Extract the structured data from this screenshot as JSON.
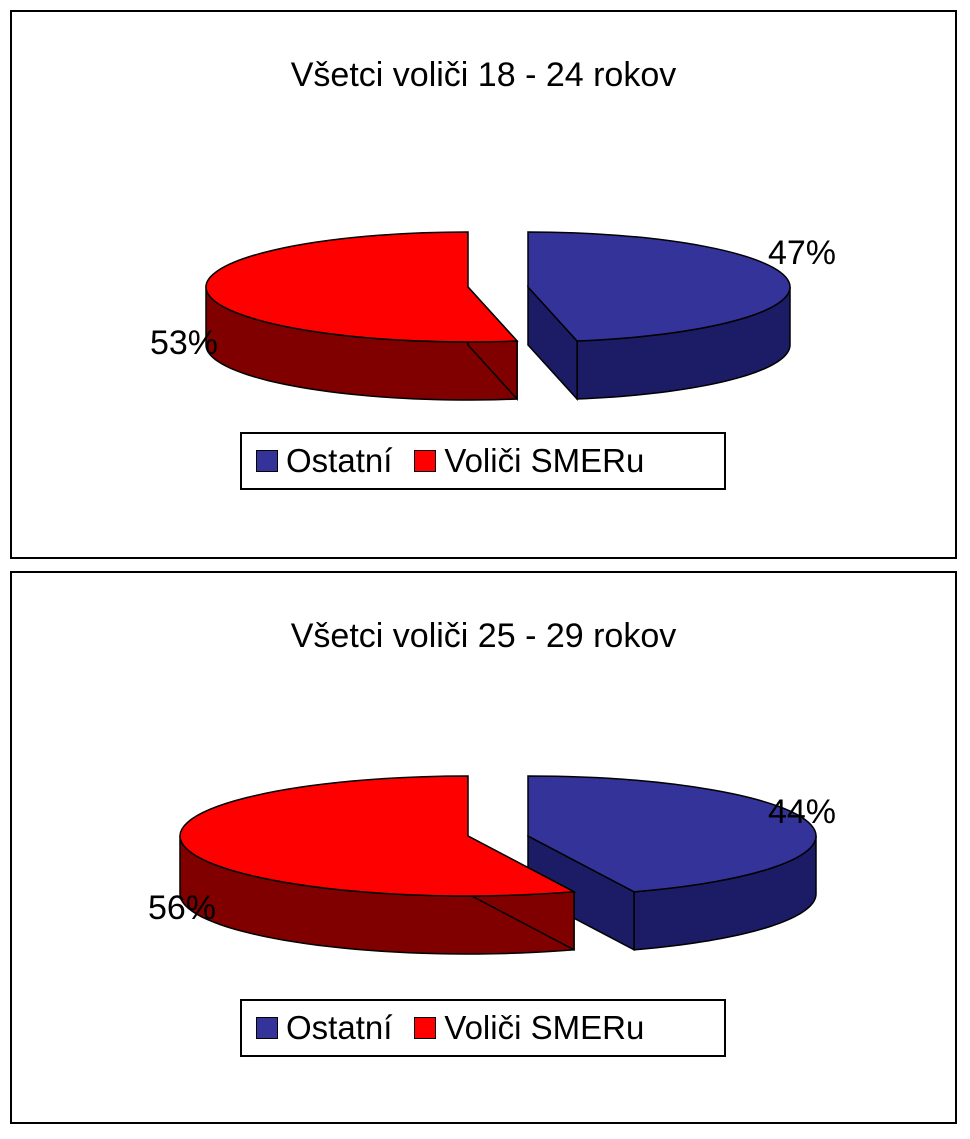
{
  "colors": {
    "ostatni_top": "#333399",
    "ostatni_side": "#1c1c66",
    "smer_top": "#ff0000",
    "smer_side": "#800000"
  },
  "legend": {
    "ostatni": "Ostatní",
    "smer": "Voliči SMERu"
  },
  "chart_data": [
    {
      "type": "pie",
      "title": "Všetci voliči 18 - 24 rokov",
      "labels": [
        "Ostatní",
        "Voliči SMERu"
      ],
      "values": [
        47,
        53
      ],
      "value_labels": [
        "47%",
        "53%"
      ],
      "style": "3d-exploded",
      "legend_position": "bottom"
    },
    {
      "type": "pie",
      "title": "Všetci voliči 25 - 29 rokov",
      "labels": [
        "Ostatní",
        "Voliči SMERu"
      ],
      "values": [
        44,
        56
      ],
      "value_labels": [
        "44%",
        "56%"
      ],
      "style": "3d-exploded",
      "legend_position": "bottom"
    }
  ]
}
